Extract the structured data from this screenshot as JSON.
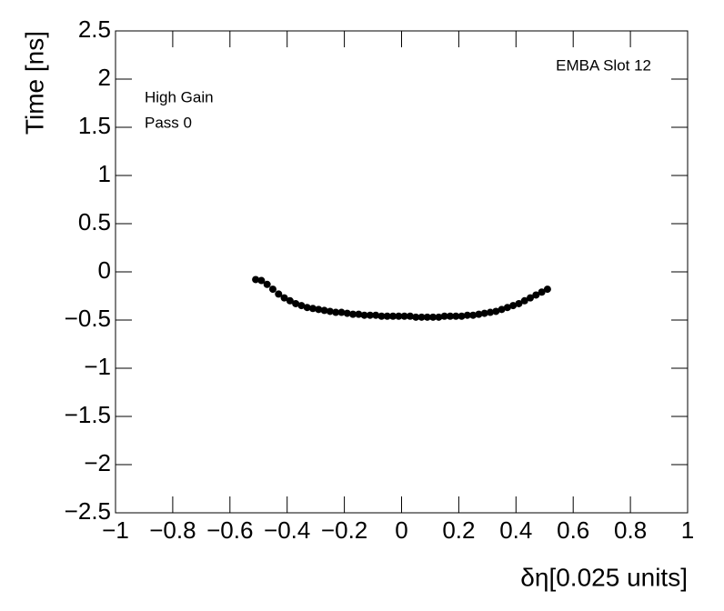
{
  "chart_data": {
    "type": "scatter",
    "x_label": "δη[0.025 units]",
    "y_label": "Time [ns]",
    "annotations": [
      "EMBA Slot 12",
      "High Gain",
      "Pass 0"
    ],
    "color": "#000000",
    "x": [
      -0.51,
      -0.49,
      -0.47,
      -0.45,
      -0.43,
      -0.41,
      -0.39,
      -0.37,
      -0.35,
      -0.33,
      -0.31,
      -0.29,
      -0.27,
      -0.25,
      -0.23,
      -0.21,
      -0.19,
      -0.17,
      -0.15,
      -0.13,
      -0.11,
      -0.09,
      -0.07,
      -0.05,
      -0.03,
      -0.01,
      0.01,
      0.03,
      0.05,
      0.07,
      0.09,
      0.11,
      0.13,
      0.15,
      0.17,
      0.19,
      0.21,
      0.23,
      0.25,
      0.27,
      0.29,
      0.31,
      0.33,
      0.35,
      0.37,
      0.39,
      0.41,
      0.43,
      0.45,
      0.47,
      0.49,
      0.51
    ],
    "values": [
      -0.08,
      -0.09,
      -0.13,
      -0.18,
      -0.23,
      -0.27,
      -0.3,
      -0.33,
      -0.35,
      -0.37,
      -0.38,
      -0.39,
      -0.4,
      -0.41,
      -0.42,
      -0.42,
      -0.43,
      -0.44,
      -0.44,
      -0.45,
      -0.45,
      -0.45,
      -0.46,
      -0.46,
      -0.46,
      -0.46,
      -0.46,
      -0.46,
      -0.47,
      -0.47,
      -0.47,
      -0.47,
      -0.47,
      -0.46,
      -0.46,
      -0.46,
      -0.46,
      -0.45,
      -0.45,
      -0.44,
      -0.43,
      -0.42,
      -0.41,
      -0.39,
      -0.37,
      -0.35,
      -0.33,
      -0.3,
      -0.27,
      -0.24,
      -0.21,
      -0.18
    ],
    "xlim": [
      -1,
      1
    ],
    "ylim": [
      -2.5,
      2.5
    ],
    "xticks": [
      {
        "value": -1,
        "label": "−1"
      },
      {
        "value": -0.8,
        "label": "−0.8"
      },
      {
        "value": -0.6,
        "label": "−0.6"
      },
      {
        "value": -0.4,
        "label": "−0.4"
      },
      {
        "value": -0.2,
        "label": "−0.2"
      },
      0,
      0.2,
      0.4,
      0.6,
      0.8,
      1
    ],
    "yticks": [
      {
        "value": -2.5,
        "label": "−2.5"
      },
      {
        "value": -2,
        "label": "−2"
      },
      {
        "value": -1.5,
        "label": "−1.5"
      },
      {
        "value": -1,
        "label": "−1"
      },
      {
        "value": -0.5,
        "label": "−0.5"
      },
      0,
      0.5,
      1,
      1.5,
      2,
      2.5
    ]
  }
}
